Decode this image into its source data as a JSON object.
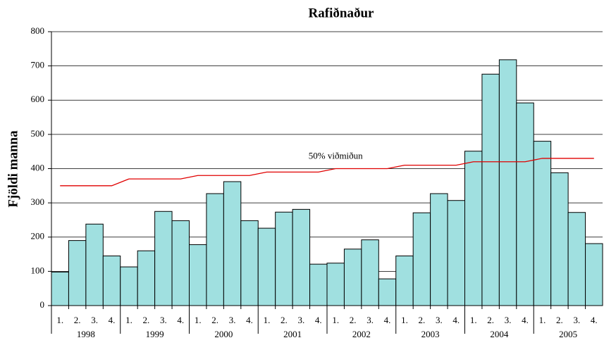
{
  "chart_data": {
    "type": "bar",
    "title": "Rafiðnaður",
    "y_label": "Fjöldi manna",
    "categories": [
      "1.",
      "2.",
      "3.",
      "4.",
      "1.",
      "2.",
      "3.",
      "4.",
      "1.",
      "2.",
      "3.",
      "4.",
      "1.",
      "2.",
      "3.",
      "4.",
      "1.",
      "2.",
      "3.",
      "4.",
      "1.",
      "2.",
      "3.",
      "4.",
      "1.",
      "2.",
      "3.",
      "4.",
      "1.",
      "2.",
      "3.",
      "4."
    ],
    "years": [
      "1998",
      "1999",
      "2000",
      "2001",
      "2002",
      "2003",
      "2004",
      "2005"
    ],
    "values": [
      98,
      190,
      238,
      145,
      113,
      160,
      275,
      248,
      178,
      327,
      362,
      248,
      226,
      273,
      281,
      121,
      124,
      165,
      192,
      78,
      145,
      271,
      327,
      307,
      451,
      676,
      718,
      592,
      480,
      388,
      272,
      181
    ],
    "color": "#a0e0e0",
    "line_series": {
      "name": "50% viðmiðun",
      "color": "#e00000",
      "values": [
        350,
        350,
        350,
        350,
        370,
        370,
        370,
        370,
        380,
        380,
        380,
        380,
        390,
        390,
        390,
        390,
        400,
        400,
        400,
        400,
        410,
        410,
        410,
        410,
        420,
        420,
        420,
        420,
        430,
        430,
        430,
        430
      ]
    },
    "ylim": [
      0,
      800
    ],
    "yticks": [
      0,
      100,
      200,
      300,
      400,
      500,
      600,
      700,
      800
    ],
    "grid": true
  }
}
